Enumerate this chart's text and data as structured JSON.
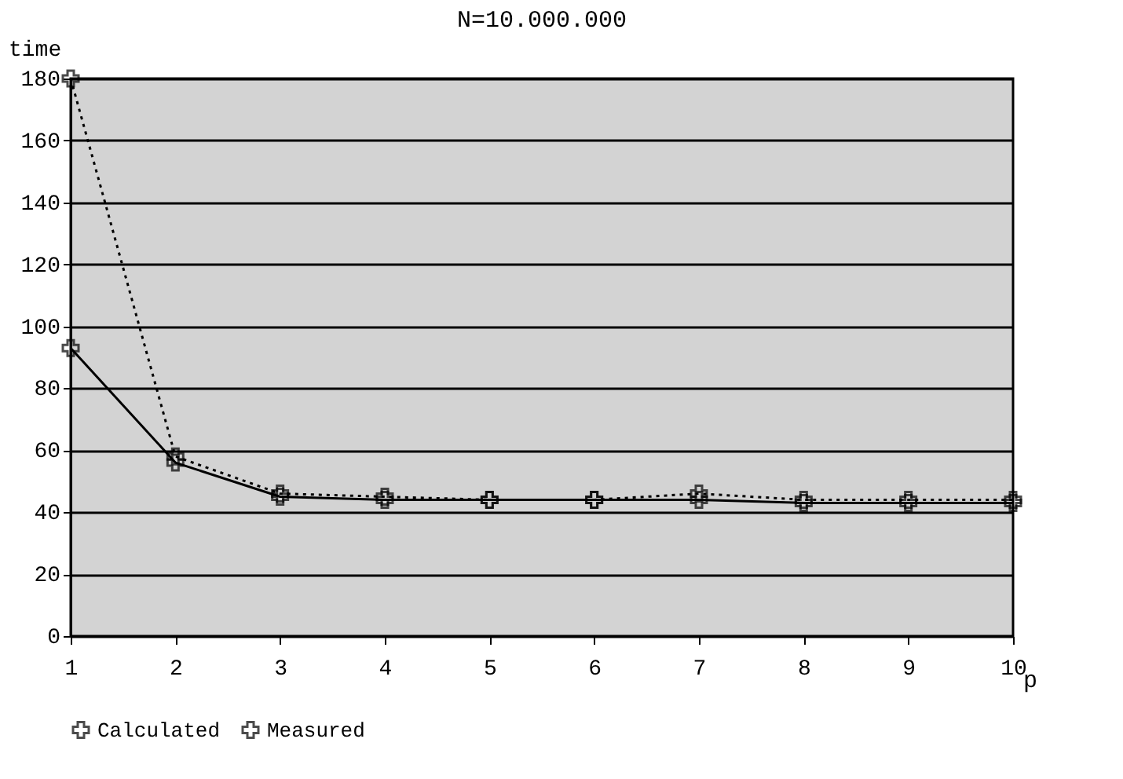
{
  "chart_data": {
    "type": "line",
    "title": "N=10.000.000",
    "xlabel": "p",
    "ylabel": "time",
    "x": [
      1,
      2,
      3,
      4,
      5,
      6,
      7,
      8,
      9,
      10
    ],
    "series": [
      {
        "name": "Calculated",
        "color": "#000000",
        "line_style": "solid",
        "marker": "cross",
        "values": [
          93,
          56,
          45,
          44,
          44,
          44,
          44,
          43,
          43,
          43
        ]
      },
      {
        "name": "Measured",
        "color": "#000000",
        "line_style": "dotted",
        "marker": "cross",
        "values": [
          180,
          58,
          46,
          45,
          44,
          44,
          46,
          44,
          44,
          44
        ]
      }
    ],
    "xlim": [
      1,
      10
    ],
    "xticks": [
      1,
      2,
      3,
      4,
      5,
      6,
      7,
      8,
      9,
      10
    ],
    "ylim": [
      0,
      180
    ],
    "yticks": [
      0,
      20,
      40,
      60,
      80,
      100,
      120,
      140,
      160,
      180
    ],
    "grid": "y",
    "legend": "bottom"
  }
}
